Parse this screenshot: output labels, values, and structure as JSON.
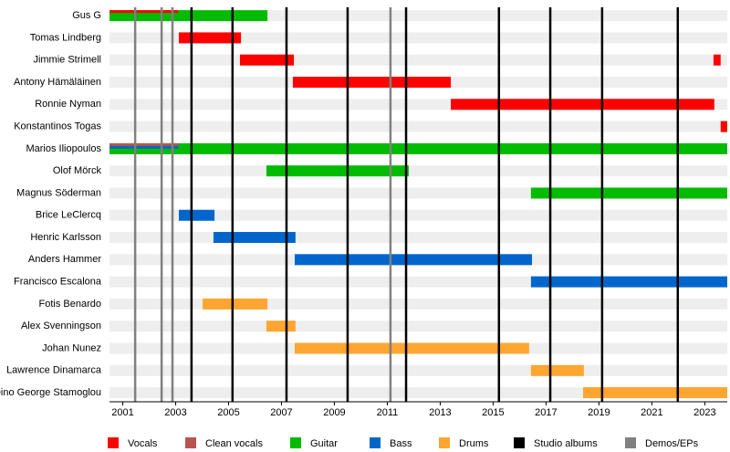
{
  "chart_data": {
    "type": "timeline",
    "categories": [
      "Gus G",
      "Tomas Lindberg",
      "Jimmie Strimell",
      "Antony Hämäläinen",
      "Ronnie Nyman",
      "Konstantinos Togas",
      "Marios Iliopoulos",
      "Olof Mörck",
      "Magnus Söderman",
      "Brice LeClercq",
      "Henric Karlsson",
      "Anders Hammer",
      "Francisco Escalona",
      "Fotis Benardo",
      "Alex Svenningson",
      "Johan Nunez",
      "Lawrence Dinamarca",
      "Dino George Stamoglou"
    ],
    "xlim": [
      2000.5,
      2023.85
    ],
    "xticks": [
      2001,
      2003,
      2005,
      2007,
      2009,
      2011,
      2013,
      2015,
      2017,
      2019,
      2021,
      2023
    ],
    "series": [
      {
        "name": "Vocals",
        "color": "#ff0000",
        "values": [
          [
            [
              2000.5,
              2003.1
            ]
          ],
          [
            [
              2003.12,
              2005.47
            ]
          ],
          [
            [
              2005.43,
              2007.47
            ],
            [
              2023.33,
              2023.6
            ]
          ],
          [
            [
              2007.43,
              2013.4
            ]
          ],
          [
            [
              2013.4,
              2023.36
            ]
          ],
          [
            [
              2023.6,
              2023.85
            ]
          ],
          null,
          null,
          null,
          null,
          null,
          null,
          null,
          null,
          null,
          null,
          null,
          null
        ]
      },
      {
        "name": "Clean vocals",
        "color": "#b85450",
        "values": [
          null,
          null,
          null,
          null,
          null,
          null,
          [
            [
              2000.5,
              2003.1
            ]
          ],
          null,
          null,
          null,
          null,
          null,
          null,
          null,
          null,
          null,
          null,
          null
        ]
      },
      {
        "name": "Guitar",
        "color": "#00bb00",
        "values": [
          [
            [
              2000.5,
              2006.47
            ]
          ],
          null,
          null,
          null,
          null,
          null,
          [
            [
              2000.5,
              2023.85
            ]
          ],
          [
            [
              2006.43,
              2011.81
            ]
          ],
          [
            [
              2016.43,
              2023.85
            ]
          ],
          null,
          null,
          null,
          null,
          null,
          null,
          null,
          null,
          null
        ]
      },
      {
        "name": "Bass",
        "color": "#0066cc",
        "values": [
          null,
          null,
          null,
          null,
          null,
          null,
          [
            [
              2000.5,
              2003.1
            ]
          ],
          null,
          null,
          [
            [
              2003.12,
              2004.47
            ]
          ],
          [
            [
              2004.43,
              2007.53
            ]
          ],
          [
            [
              2007.5,
              2016.47
            ]
          ],
          [
            [
              2016.43,
              2023.85
            ]
          ],
          null,
          null,
          null,
          null,
          null
        ]
      },
      {
        "name": "Drums",
        "color": "#ffa531",
        "values": [
          null,
          null,
          null,
          null,
          null,
          null,
          null,
          null,
          null,
          null,
          null,
          null,
          null,
          [
            [
              2004.02,
              2006.47
            ]
          ],
          [
            [
              2006.43,
              2007.53
            ]
          ],
          [
            [
              2007.5,
              2016.36
            ]
          ],
          [
            [
              2016.43,
              2018.43
            ]
          ],
          [
            [
              2018.4,
              2023.85
            ]
          ]
        ]
      }
    ],
    "events": [
      {
        "name": "Studio albums",
        "color": "#000000",
        "values": [
          2003.6,
          2005.15,
          2007.19,
          2009.5,
          2011.71,
          2015.22,
          2017.16,
          2019.12,
          2021.98
        ]
      },
      {
        "name": "Demos/EPs",
        "color": "#808080",
        "values": [
          2001.47,
          2002.47,
          2002.88,
          2011.12
        ]
      }
    ]
  }
}
